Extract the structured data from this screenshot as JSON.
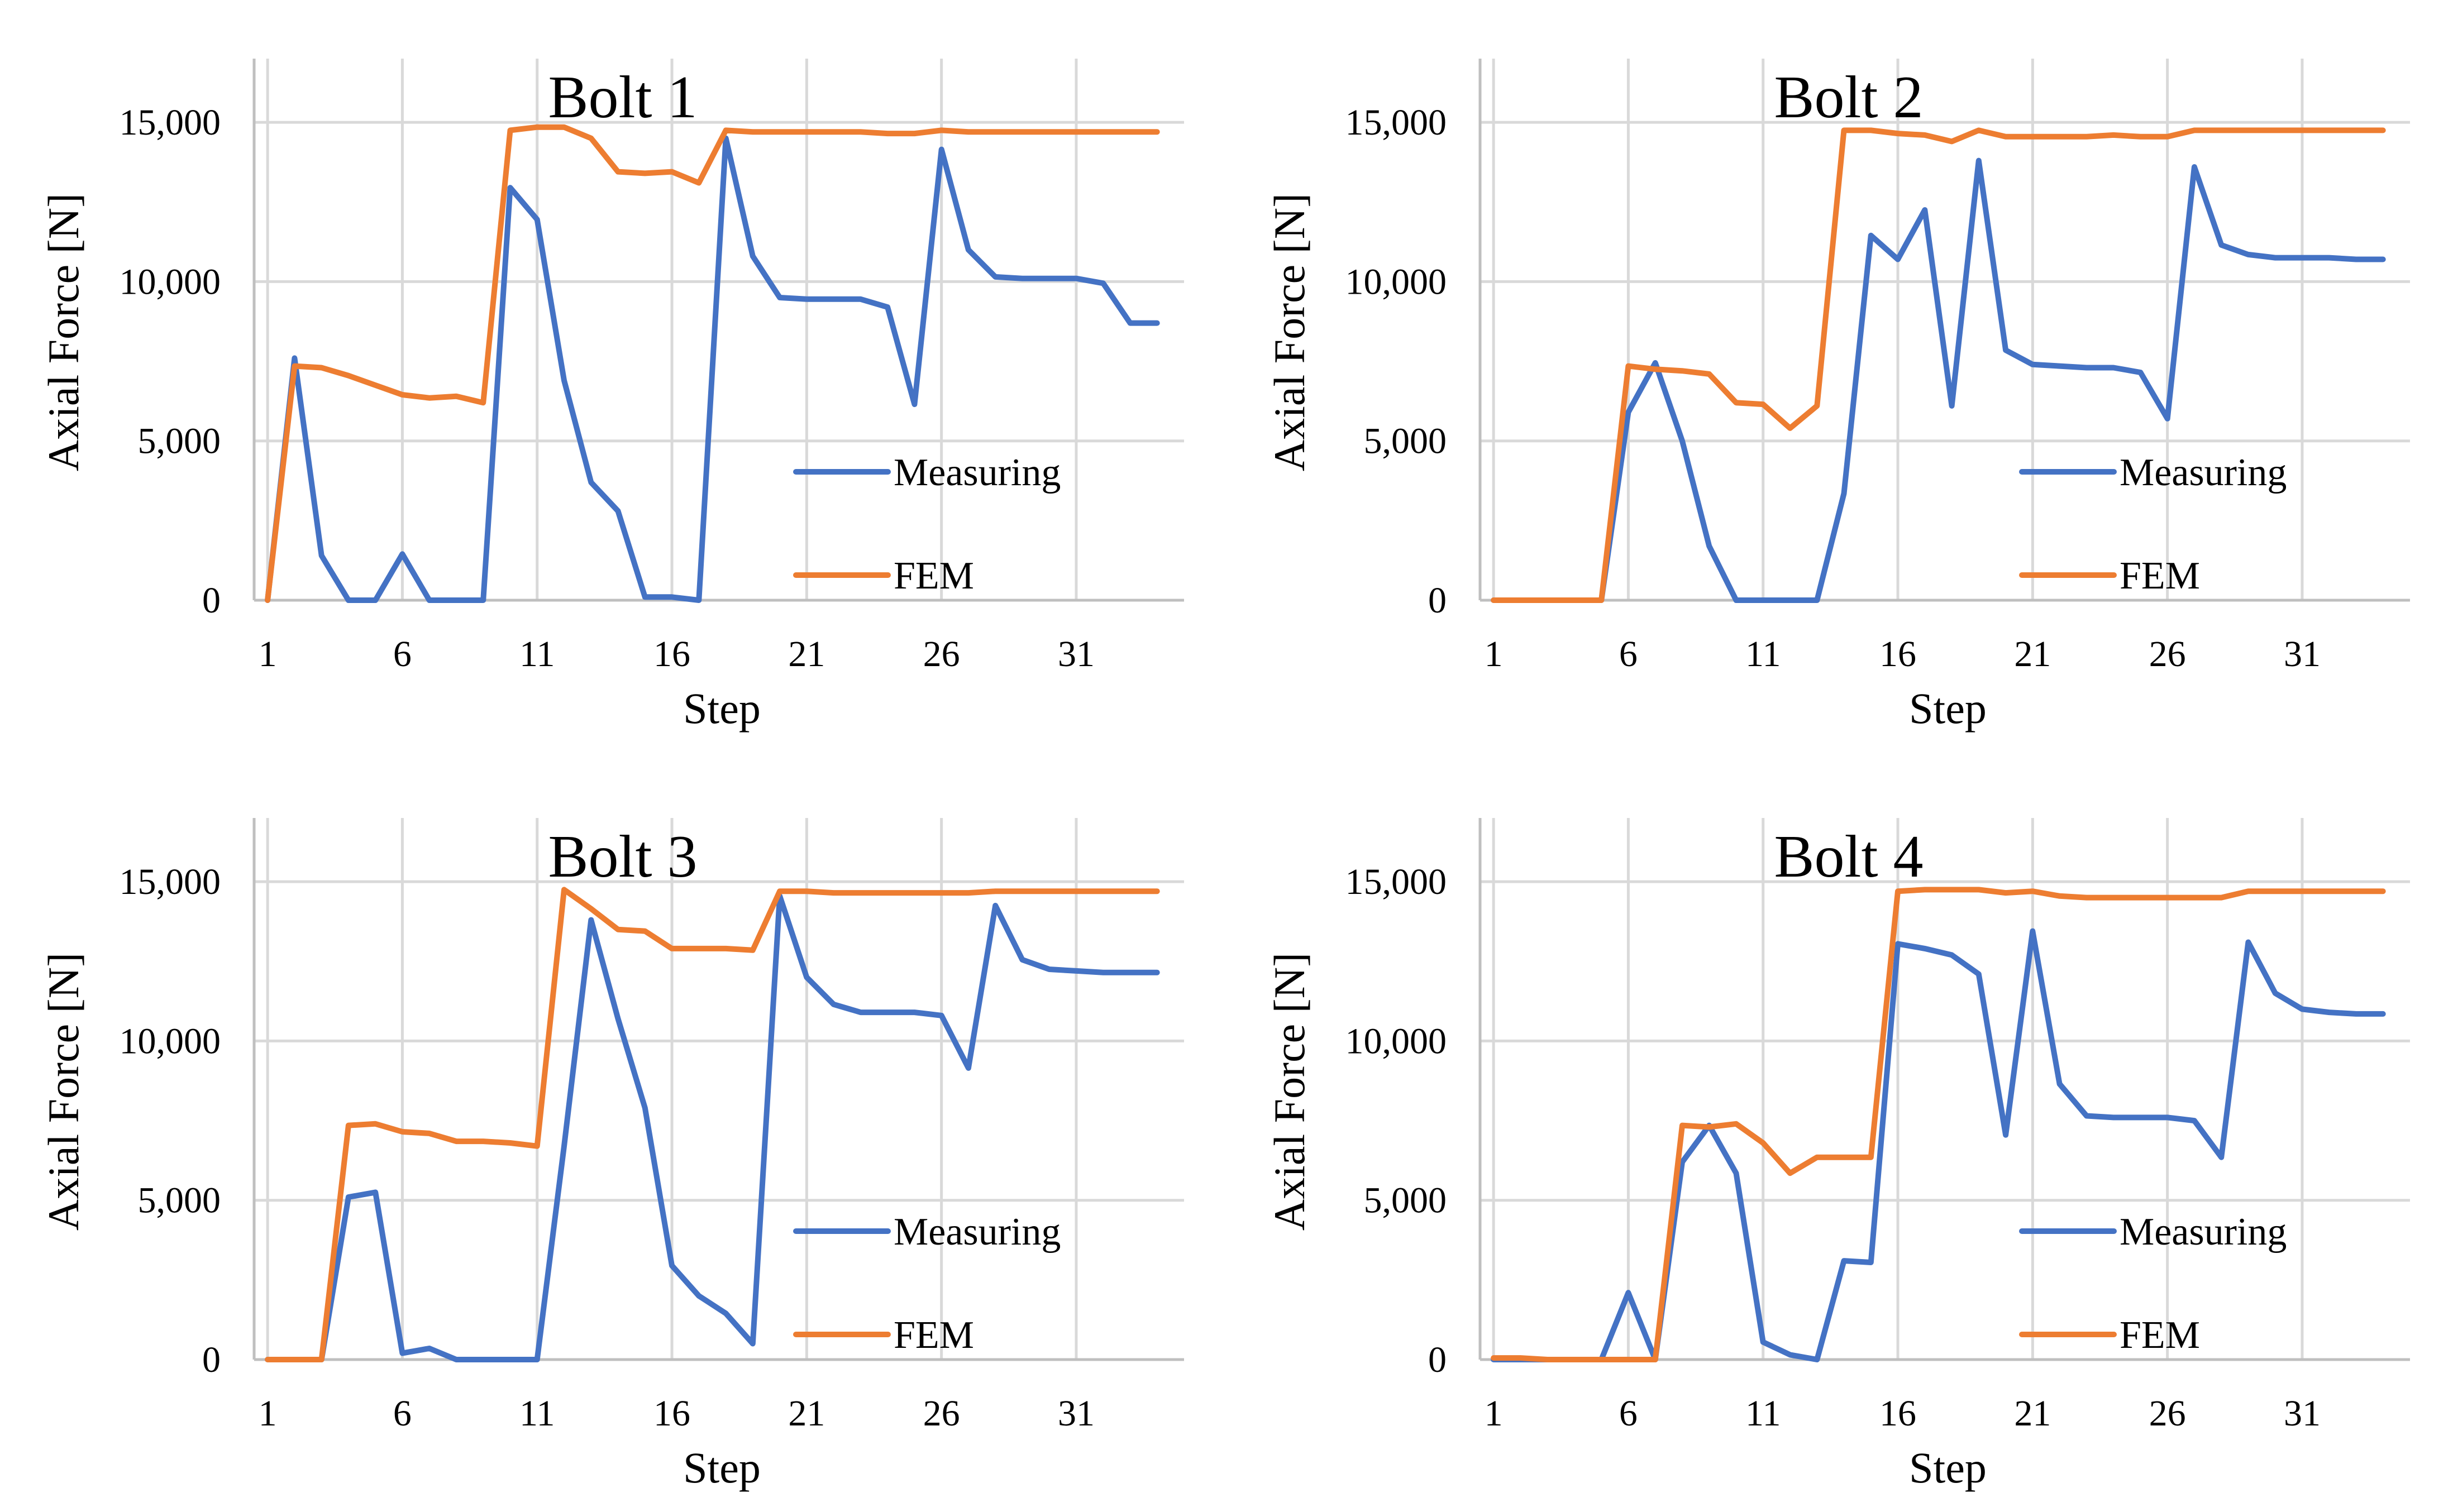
{
  "chart_data": [
    {
      "type": "line",
      "title": "Bolt 1",
      "xlabel": "Step",
      "ylabel": "Axial Force [N]",
      "xticks": [
        1,
        6,
        11,
        16,
        21,
        26,
        31
      ],
      "xtick_labels": [
        "1",
        "6",
        "11",
        "16",
        "21",
        "26",
        "31"
      ],
      "yticks": [
        0,
        5000,
        10000,
        15000
      ],
      "ytick_labels": [
        "0",
        "5,000",
        "10,000",
        "15,000"
      ],
      "xlim": [
        0.5,
        35
      ],
      "ylim": [
        0,
        17000
      ],
      "legend_position": "bottom-right",
      "series": [
        {
          "name": "Measuring",
          "color": "#4472c4",
          "x": [
            1,
            2,
            3,
            4,
            5,
            6,
            7,
            8,
            9,
            10,
            11,
            12,
            13,
            14,
            15,
            16,
            17,
            18,
            19,
            20,
            21,
            22,
            23,
            24,
            25,
            26,
            27,
            28,
            29,
            30,
            31,
            32,
            33,
            34
          ],
          "values": [
            0,
            7600,
            1400,
            0,
            0,
            1450,
            0,
            0,
            0,
            12950,
            11950,
            6900,
            3700,
            2800,
            100,
            100,
            0,
            14500,
            10800,
            9500,
            9450,
            9450,
            9450,
            9200,
            6150,
            14150,
            11000,
            10150,
            10100,
            10100,
            10100,
            9950,
            8700,
            8700
          ]
        },
        {
          "name": "FEM",
          "color": "#ed7d31",
          "x": [
            1,
            2,
            3,
            4,
            5,
            6,
            7,
            8,
            9,
            10,
            11,
            12,
            13,
            14,
            15,
            16,
            17,
            18,
            19,
            20,
            21,
            22,
            23,
            24,
            25,
            26,
            27,
            28,
            29,
            30,
            31,
            32,
            33,
            34
          ],
          "values": [
            0,
            7350,
            7300,
            7050,
            6750,
            6450,
            6350,
            6400,
            6200,
            14750,
            14850,
            14850,
            14500,
            13450,
            13400,
            13450,
            13100,
            14750,
            14700,
            14700,
            14700,
            14700,
            14700,
            14650,
            14650,
            14750,
            14700,
            14700,
            14700,
            14700,
            14700,
            14700,
            14700,
            14700
          ]
        }
      ]
    },
    {
      "type": "line",
      "title": "Bolt 2",
      "xlabel": "Step",
      "ylabel": "Axial Force [N]",
      "xticks": [
        1,
        6,
        11,
        16,
        21,
        26,
        31
      ],
      "xtick_labels": [
        "1",
        "6",
        "11",
        "16",
        "21",
        "26",
        "31"
      ],
      "yticks": [
        0,
        5000,
        10000,
        15000
      ],
      "ytick_labels": [
        "0",
        "5,000",
        "10,000",
        "15,000"
      ],
      "xlim": [
        0.5,
        35
      ],
      "ylim": [
        0,
        17000
      ],
      "legend_position": "bottom-right",
      "series": [
        {
          "name": "Measuring",
          "color": "#4472c4",
          "x": [
            1,
            2,
            3,
            4,
            5,
            6,
            7,
            8,
            9,
            10,
            11,
            12,
            13,
            14,
            15,
            16,
            17,
            18,
            19,
            20,
            21,
            22,
            23,
            24,
            25,
            26,
            27,
            28,
            29,
            30,
            31,
            32,
            33,
            34
          ],
          "values": [
            0,
            0,
            0,
            0,
            0,
            5900,
            7450,
            5000,
            1700,
            0,
            0,
            0,
            0,
            3350,
            11450,
            10700,
            12250,
            6100,
            13800,
            7850,
            7400,
            7350,
            7300,
            7300,
            7150,
            5700,
            13600,
            11150,
            10850,
            10750,
            10750,
            10750,
            10700,
            10700
          ]
        },
        {
          "name": "FEM",
          "color": "#ed7d31",
          "x": [
            1,
            2,
            3,
            4,
            5,
            6,
            7,
            8,
            9,
            10,
            11,
            12,
            13,
            14,
            15,
            16,
            17,
            18,
            19,
            20,
            21,
            22,
            23,
            24,
            25,
            26,
            27,
            28,
            29,
            30,
            31,
            32,
            33,
            34
          ],
          "values": [
            0,
            0,
            0,
            0,
            0,
            7350,
            7250,
            7200,
            7100,
            6200,
            6150,
            5400,
            6100,
            14750,
            14750,
            14650,
            14600,
            14400,
            14750,
            14550,
            14550,
            14550,
            14550,
            14600,
            14550,
            14550,
            14750,
            14750,
            14750,
            14750,
            14750,
            14750,
            14750,
            14750
          ]
        }
      ]
    },
    {
      "type": "line",
      "title": "Bolt 3",
      "xlabel": "Step",
      "ylabel": "Axial Force [N]",
      "xticks": [
        1,
        6,
        11,
        16,
        21,
        26,
        31
      ],
      "xtick_labels": [
        "1",
        "6",
        "11",
        "16",
        "21",
        "26",
        "31"
      ],
      "yticks": [
        0,
        5000,
        10000,
        15000
      ],
      "ytick_labels": [
        "0",
        "5,000",
        "10,000",
        "15,000"
      ],
      "xlim": [
        0.5,
        35
      ],
      "ylim": [
        0,
        17000
      ],
      "legend_position": "bottom-right",
      "series": [
        {
          "name": "Measuring",
          "color": "#4472c4",
          "x": [
            1,
            2,
            3,
            4,
            5,
            6,
            7,
            8,
            9,
            10,
            11,
            12,
            13,
            14,
            15,
            16,
            17,
            18,
            19,
            20,
            21,
            22,
            23,
            24,
            25,
            26,
            27,
            28,
            29,
            30,
            31,
            32,
            33,
            34
          ],
          "values": [
            0,
            0,
            0,
            5100,
            5250,
            200,
            350,
            0,
            0,
            0,
            0,
            6700,
            13800,
            10700,
            7900,
            2950,
            2000,
            1450,
            500,
            14550,
            12000,
            11150,
            10900,
            10900,
            10900,
            10800,
            9150,
            14250,
            12550,
            12250,
            12200,
            12150,
            12150,
            12150
          ]
        },
        {
          "name": "FEM",
          "color": "#ed7d31",
          "x": [
            1,
            2,
            3,
            4,
            5,
            6,
            7,
            8,
            9,
            10,
            11,
            12,
            13,
            14,
            15,
            16,
            17,
            18,
            19,
            20,
            21,
            22,
            23,
            24,
            25,
            26,
            27,
            28,
            29,
            30,
            31,
            32,
            33,
            34
          ],
          "values": [
            0,
            0,
            0,
            7350,
            7400,
            7150,
            7100,
            6850,
            6850,
            6800,
            6700,
            14750,
            14150,
            13500,
            13450,
            12900,
            12900,
            12900,
            12850,
            14700,
            14700,
            14650,
            14650,
            14650,
            14650,
            14650,
            14650,
            14700,
            14700,
            14700,
            14700,
            14700,
            14700,
            14700
          ]
        }
      ]
    },
    {
      "type": "line",
      "title": "Bolt 4",
      "xlabel": "Step",
      "ylabel": "Axial Force [N]",
      "xticks": [
        1,
        6,
        11,
        16,
        21,
        26,
        31
      ],
      "xtick_labels": [
        "1",
        "6",
        "11",
        "16",
        "21",
        "26",
        "31"
      ],
      "yticks": [
        0,
        5000,
        10000,
        15000
      ],
      "ytick_labels": [
        "0",
        "5,000",
        "10,000",
        "15,000"
      ],
      "xlim": [
        0.5,
        35
      ],
      "ylim": [
        0,
        17000
      ],
      "legend_position": "bottom-right",
      "series": [
        {
          "name": "Measuring",
          "color": "#4472c4",
          "x": [
            1,
            2,
            3,
            4,
            5,
            6,
            7,
            8,
            9,
            10,
            11,
            12,
            13,
            14,
            15,
            16,
            17,
            18,
            19,
            20,
            21,
            22,
            23,
            24,
            25,
            26,
            27,
            28,
            29,
            30,
            31,
            32,
            33,
            34
          ],
          "values": [
            0,
            0,
            0,
            0,
            0,
            2100,
            0,
            6200,
            7350,
            5850,
            550,
            150,
            0,
            3100,
            3050,
            13050,
            12900,
            12700,
            12100,
            7050,
            13450,
            8650,
            7650,
            7600,
            7600,
            7600,
            7500,
            6350,
            13100,
            11500,
            11000,
            10900,
            10850,
            10850
          ]
        },
        {
          "name": "FEM",
          "color": "#ed7d31",
          "x": [
            1,
            2,
            3,
            4,
            5,
            6,
            7,
            8,
            9,
            10,
            11,
            12,
            13,
            14,
            15,
            16,
            17,
            18,
            19,
            20,
            21,
            22,
            23,
            24,
            25,
            26,
            27,
            28,
            29,
            30,
            31,
            32,
            33,
            34
          ],
          "values": [
            50,
            50,
            0,
            0,
            0,
            0,
            0,
            7350,
            7300,
            7400,
            6800,
            5850,
            6350,
            6350,
            6350,
            14700,
            14750,
            14750,
            14750,
            14650,
            14700,
            14550,
            14500,
            14500,
            14500,
            14500,
            14500,
            14500,
            14700,
            14700,
            14700,
            14700,
            14700,
            14700
          ]
        }
      ]
    }
  ]
}
